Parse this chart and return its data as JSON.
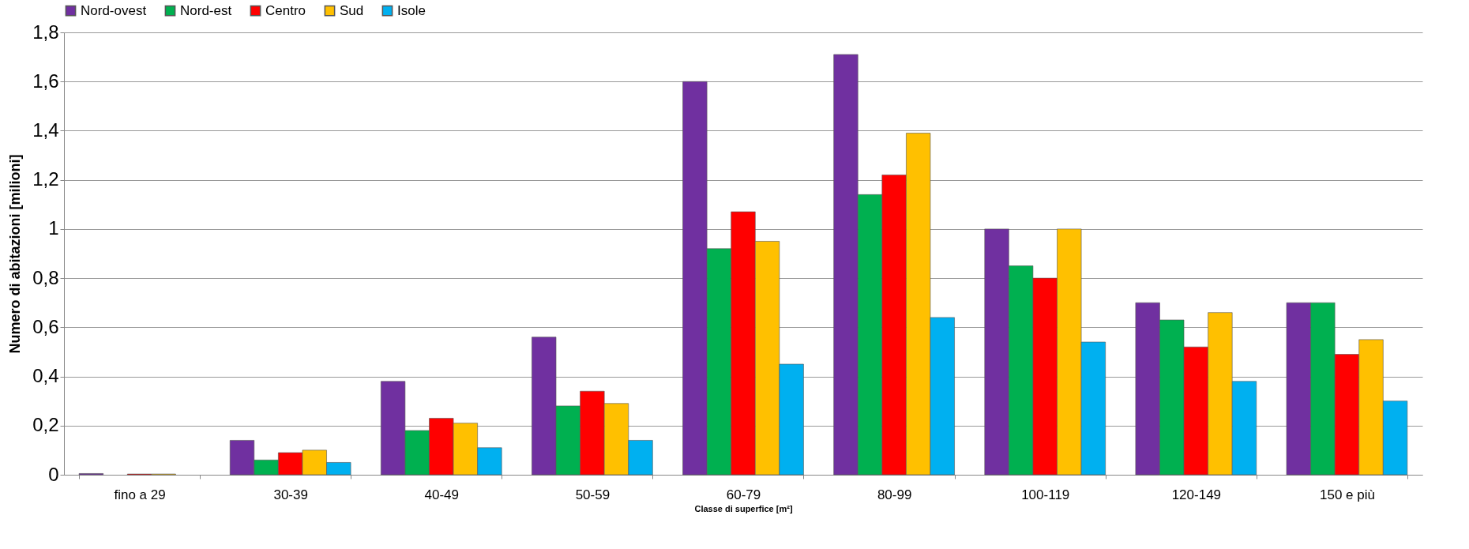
{
  "chart_data": {
    "type": "bar",
    "xlabel": "Classe di superfice [m²]",
    "ylabel": "Numero di abitazioni [milioni]",
    "categories": [
      "fino a 29",
      "30-39",
      "40-49",
      "50-59",
      "60-79",
      "80-99",
      "100-119",
      "120-149",
      "150 e più"
    ],
    "series": [
      {
        "name": "Nord-ovest",
        "color": "#7030a0",
        "values": [
          0.005,
          0.14,
          0.38,
          0.56,
          1.6,
          1.71,
          1.0,
          0.7,
          0.7
        ]
      },
      {
        "name": "Nord-est",
        "color": "#00b050",
        "values": [
          null,
          0.06,
          0.18,
          0.28,
          0.92,
          1.14,
          0.85,
          0.63,
          0.7
        ]
      },
      {
        "name": "Centro",
        "color": "#ff0000",
        "values": [
          0.003,
          0.09,
          0.23,
          0.34,
          1.07,
          1.22,
          0.8,
          0.52,
          0.49
        ]
      },
      {
        "name": "Sud",
        "color": "#ffc000",
        "values": [
          0.003,
          0.1,
          0.21,
          0.29,
          0.95,
          1.39,
          1.0,
          0.66,
          0.55
        ]
      },
      {
        "name": "Isole",
        "color": "#00b0f0",
        "values": [
          null,
          0.05,
          0.11,
          0.14,
          0.45,
          0.64,
          0.54,
          0.38,
          0.3
        ]
      }
    ],
    "ylim": [
      0,
      1.8
    ],
    "yticks": [
      0,
      {
        "value": 0.2,
        "label": "0,2"
      },
      {
        "value": 0.4,
        "label": "0,4"
      },
      {
        "value": 0.6,
        "label": "0,6"
      },
      {
        "value": 0.8,
        "label": "0,8"
      },
      1,
      {
        "value": 1.2,
        "label": "1,2"
      },
      {
        "value": 1.4,
        "label": "1,4"
      },
      {
        "value": 1.6,
        "label": "1,6"
      },
      {
        "value": 1.8,
        "label": "1,8"
      }
    ],
    "grid": "y",
    "legend": "top"
  }
}
